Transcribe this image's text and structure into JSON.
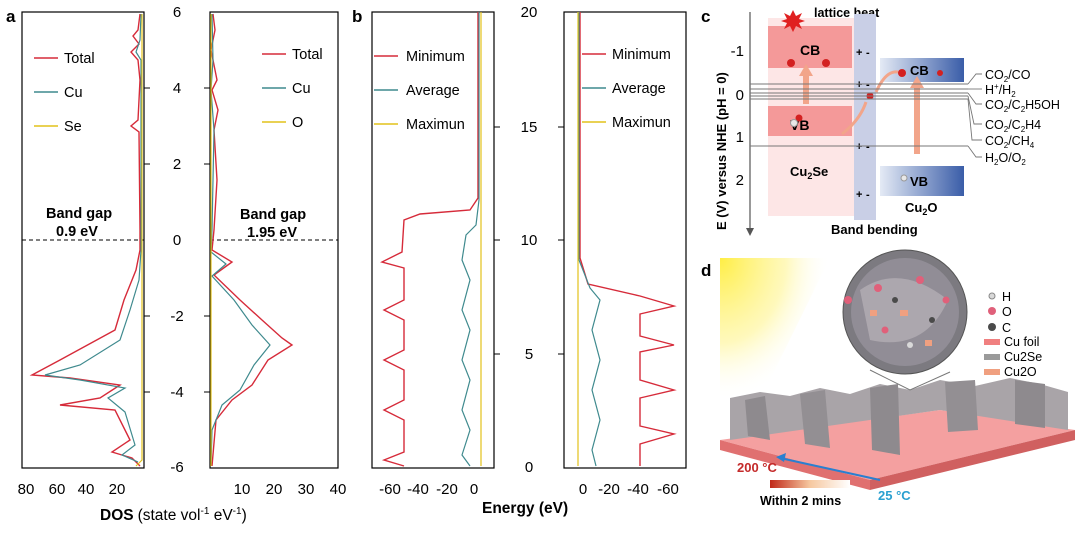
{
  "figure": {
    "panel_a": {
      "label": "a",
      "xlabel_main": "DOS",
      "xlabel_unit": "(state vol",
      "xlabel_exp1": "-1",
      "xlabel_mid": " eV",
      "xlabel_exp2": "-1",
      "xlabel_end": ")",
      "left": {
        "legend": [
          "Total",
          "Cu",
          "Se"
        ],
        "band_gap_label": "Band gap",
        "band_gap_value": "0.9 eV",
        "x_ticks": [
          "80",
          "60",
          "40",
          "20"
        ]
      },
      "right": {
        "legend": [
          "Total",
          "Cu",
          "O"
        ],
        "band_gap_label": "Band gap",
        "band_gap_value": "1.95 eV",
        "x_ticks": [
          "10",
          "20",
          "30",
          "40"
        ]
      },
      "y_ticks": [
        "6",
        "4",
        "2",
        "0",
        "-2",
        "-4",
        "-6"
      ]
    },
    "panel_b": {
      "label": "b",
      "xlabel": "Energy (eV)",
      "left": {
        "legend": [
          "Minimum",
          "Average",
          "Maximun"
        ],
        "x_ticks": [
          "-60",
          "-40",
          "-20",
          "0"
        ]
      },
      "right": {
        "legend": [
          "Minimum",
          "Average",
          "Maximun"
        ],
        "x_ticks": [
          "0",
          "-20",
          "-40",
          "-60"
        ]
      },
      "y_ticks": [
        "20",
        "15",
        "10",
        "5",
        "0"
      ]
    },
    "panel_c": {
      "label": "c",
      "ylabel": "E (V) versus NHE (pH = 0)",
      "y_ticks": [
        "-1",
        "0",
        "1",
        "2"
      ],
      "lattice_heat": "lattice heat",
      "cb": "CB",
      "vb": "VB",
      "cu2se": "Cu",
      "cu2se_sub": "2",
      "cu2se_end": "Se",
      "cu2o": "Cu",
      "cu2o_sub": "2",
      "cu2o_end": "O",
      "band_bending": "Band bending",
      "plus": "+",
      "minus": "-",
      "redox": [
        {
          "a": "CO",
          "s1": "2",
          "b": "/CO",
          "s2": "",
          "c": ""
        },
        {
          "a": "H",
          "s1": "+",
          "b": "/H",
          "s2": "2",
          "c": ""
        },
        {
          "a": "CO",
          "s1": "2",
          "b": "/C",
          "s2": "2",
          "c": "H5OH"
        },
        {
          "a": "CO",
          "s1": "2",
          "b": "/C",
          "s2": "2",
          "c": "H4"
        },
        {
          "a": "CO",
          "s1": "2",
          "b": "/CH",
          "s2": "4",
          "c": ""
        },
        {
          "a": "H",
          "s1": "2",
          "b": "O/O",
          "s2": "2",
          "c": ""
        }
      ]
    },
    "panel_d": {
      "label": "d",
      "legend": [
        {
          "symbol": "H",
          "color": "#d9d9d9"
        },
        {
          "symbol": "O",
          "color": "#e0607a"
        },
        {
          "symbol": "C",
          "color": "#4a4a4a"
        }
      ],
      "materials": [
        {
          "name": "Cu foil",
          "color": "#f08080"
        },
        {
          "name": "Cu2Se",
          "color": "#9a9a9a"
        },
        {
          "name": "Cu2O",
          "color": "#f0a080"
        }
      ],
      "hot_temp": "200 °C",
      "cold_temp": "25 °C",
      "time_label": "Within 2 mins"
    }
  },
  "colors": {
    "red": "#d62b3a",
    "teal": "#3f8a8e",
    "yellow": "#e2c21a"
  }
}
